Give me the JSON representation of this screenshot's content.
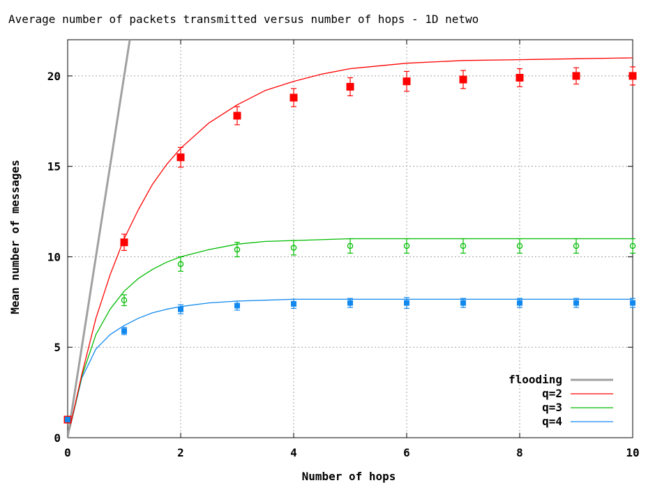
{
  "chart_data": {
    "type": "line",
    "title": "Average number of packets transmitted versus number of hops - 1D netwo",
    "xlabel": "Number of hops",
    "ylabel": "Mean number of messages",
    "xlim": [
      0,
      10
    ],
    "ylim": [
      0,
      22
    ],
    "xticks": [
      0,
      2,
      4,
      6,
      8,
      10
    ],
    "yticks": [
      0,
      5,
      10,
      15,
      20
    ],
    "grid": true,
    "legend_position": "bottom-right",
    "series": [
      {
        "name": "flooding",
        "kind": "line",
        "color": "#a0a0a0",
        "x": [
          0,
          1.1
        ],
        "y": [
          0,
          22
        ]
      },
      {
        "name": "q=2",
        "kind": "line",
        "color": "#ff0000",
        "x": [
          0,
          0.25,
          0.5,
          0.75,
          1,
          1.25,
          1.5,
          1.75,
          2,
          2.5,
          3,
          3.5,
          4,
          4.5,
          5,
          6,
          7,
          8,
          9,
          10
        ],
        "y": [
          0,
          3.5,
          6.6,
          9.0,
          11.0,
          12.6,
          14.0,
          15.1,
          16.0,
          17.4,
          18.4,
          19.2,
          19.7,
          20.1,
          20.4,
          20.7,
          20.85,
          20.9,
          20.95,
          21.0
        ]
      },
      {
        "name": "q=2 (measured)",
        "kind": "points",
        "marker": "filled-square",
        "color": "#ff0000",
        "x": [
          0,
          1,
          2,
          3,
          4,
          5,
          6,
          7,
          8,
          9,
          10
        ],
        "y": [
          1.0,
          10.8,
          15.5,
          17.8,
          18.8,
          19.4,
          19.7,
          19.8,
          19.9,
          20.0,
          20.0
        ],
        "err": [
          0.1,
          0.45,
          0.55,
          0.5,
          0.5,
          0.5,
          0.55,
          0.5,
          0.5,
          0.45,
          0.5
        ]
      },
      {
        "name": "q=3",
        "kind": "line",
        "color": "#00bb00",
        "x": [
          0,
          0.25,
          0.5,
          0.75,
          1,
          1.25,
          1.5,
          1.75,
          2,
          2.5,
          3,
          3.5,
          4,
          5,
          6,
          7,
          8,
          9,
          10
        ],
        "y": [
          0,
          3.4,
          5.7,
          7.1,
          8.1,
          8.8,
          9.3,
          9.7,
          10.0,
          10.4,
          10.7,
          10.85,
          10.9,
          11.0,
          11.0,
          11.0,
          11.0,
          11.0,
          11.0
        ]
      },
      {
        "name": "q=3 (measured)",
        "kind": "points",
        "marker": "open-circle",
        "color": "#00bb00",
        "x": [
          0,
          1,
          2,
          3,
          4,
          5,
          6,
          7,
          8,
          9,
          10
        ],
        "y": [
          1.0,
          7.6,
          9.6,
          10.4,
          10.5,
          10.6,
          10.6,
          10.6,
          10.6,
          10.6,
          10.6
        ],
        "err": [
          0.1,
          0.3,
          0.4,
          0.4,
          0.4,
          0.4,
          0.4,
          0.4,
          0.4,
          0.4,
          0.4
        ]
      },
      {
        "name": "q=4",
        "kind": "line",
        "color": "#1188ee",
        "x": [
          0,
          0.25,
          0.5,
          0.75,
          1,
          1.25,
          1.5,
          1.75,
          2,
          2.5,
          3,
          3.5,
          4,
          5,
          6,
          7,
          8,
          9,
          10
        ],
        "y": [
          0,
          3.3,
          4.9,
          5.7,
          6.2,
          6.6,
          6.9,
          7.1,
          7.25,
          7.45,
          7.55,
          7.6,
          7.65,
          7.65,
          7.65,
          7.65,
          7.65,
          7.65,
          7.65
        ]
      },
      {
        "name": "q=4 (measured)",
        "kind": "points",
        "marker": "filled-square-small",
        "color": "#1188ee",
        "x": [
          0,
          1,
          2,
          3,
          4,
          5,
          6,
          7,
          8,
          9,
          10
        ],
        "y": [
          1.0,
          5.9,
          7.1,
          7.3,
          7.4,
          7.45,
          7.45,
          7.45,
          7.45,
          7.45,
          7.45
        ],
        "err": [
          0.1,
          0.2,
          0.25,
          0.25,
          0.25,
          0.25,
          0.3,
          0.25,
          0.25,
          0.25,
          0.25
        ]
      }
    ],
    "legend": [
      "flooding",
      "q=2",
      "q=3",
      "q=4"
    ]
  }
}
